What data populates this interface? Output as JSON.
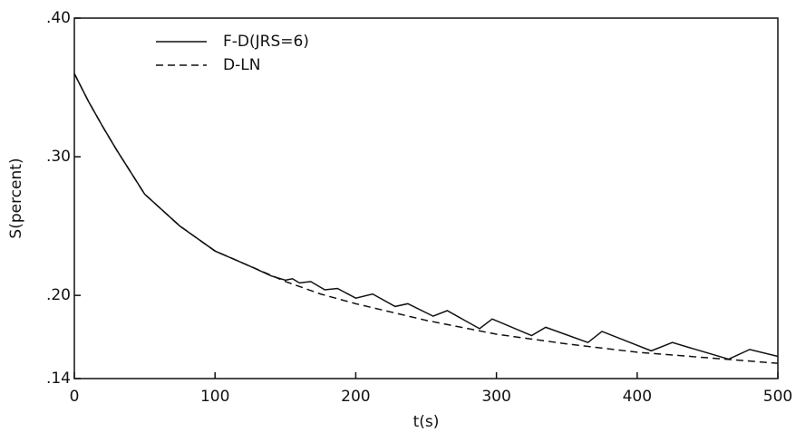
{
  "chart_data": {
    "type": "line",
    "xlabel": "t(s)",
    "ylabel": "S(percent)",
    "xlim": [
      0,
      500
    ],
    "xticks": [
      0,
      100,
      200,
      300,
      400,
      500
    ],
    "ylim": [
      0.14,
      0.4
    ],
    "yticks": [
      {
        "value": 0.14,
        "label": ".14"
      },
      {
        "value": 0.2,
        "label": ".20"
      },
      {
        "value": 0.3,
        "label": ".30"
      },
      {
        "value": 0.4,
        "label": ".40"
      }
    ],
    "grid": false,
    "legend": "upper left",
    "series": [
      {
        "name": "F-D(JRS=6)",
        "color": "#111111",
        "linestyle": "solid",
        "x": [
          0,
          10,
          20,
          30,
          50,
          75,
          100,
          125,
          140,
          150,
          155,
          160,
          168,
          178,
          187,
          200,
          212,
          228,
          237,
          255,
          265,
          288,
          297,
          325,
          335,
          365,
          375,
          410,
          425,
          465,
          480,
          500
        ],
        "values": [
          0.36,
          0.34,
          0.322,
          0.305,
          0.273,
          0.25,
          0.232,
          0.221,
          0.214,
          0.211,
          0.212,
          0.209,
          0.21,
          0.204,
          0.205,
          0.198,
          0.201,
          0.192,
          0.194,
          0.185,
          0.189,
          0.176,
          0.183,
          0.171,
          0.177,
          0.166,
          0.174,
          0.16,
          0.166,
          0.154,
          0.161,
          0.156
        ]
      },
      {
        "name": "D-LN",
        "color": "#111111",
        "linestyle": "dashed",
        "x": [
          0,
          10,
          20,
          30,
          50,
          75,
          100,
          125,
          150,
          175,
          200,
          250,
          300,
          350,
          400,
          450,
          500
        ],
        "values": [
          0.36,
          0.34,
          0.322,
          0.305,
          0.273,
          0.25,
          0.232,
          0.221,
          0.21,
          0.201,
          0.194,
          0.182,
          0.172,
          0.165,
          0.159,
          0.155,
          0.151
        ]
      }
    ]
  }
}
